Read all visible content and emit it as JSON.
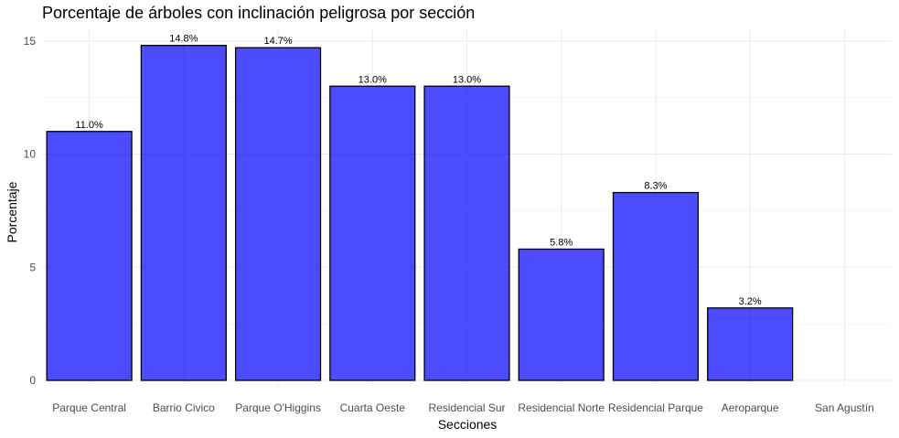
{
  "chart_data": {
    "type": "bar",
    "title": "Porcentaje de árboles con inclinación peligrosa por sección",
    "xlabel": "Secciones",
    "ylabel": "Porcentaje",
    "categories": [
      "Parque Central",
      "Barrio Civico",
      "Parque O'Higgins",
      "Cuarta Oeste",
      "Residencial Sur",
      "Residencial Norte",
      "Residencial Parque",
      "Aeroparque",
      "San Agustín"
    ],
    "values": [
      11.0,
      14.8,
      14.7,
      13.0,
      13.0,
      5.8,
      8.3,
      3.2,
      null
    ],
    "data_labels": [
      "11.0%",
      "14.8%",
      "14.7%",
      "13.0%",
      "13.0%",
      "5.8%",
      "8.3%",
      "3.2%",
      ""
    ],
    "yticks": [
      0,
      5,
      10,
      15
    ],
    "ylim": [
      0,
      15.5
    ],
    "grid": true,
    "legend": "none",
    "colors": {
      "bar_fill": "#0000ff",
      "bar_stroke": "#000000",
      "grid": "#ebebeb"
    }
  }
}
